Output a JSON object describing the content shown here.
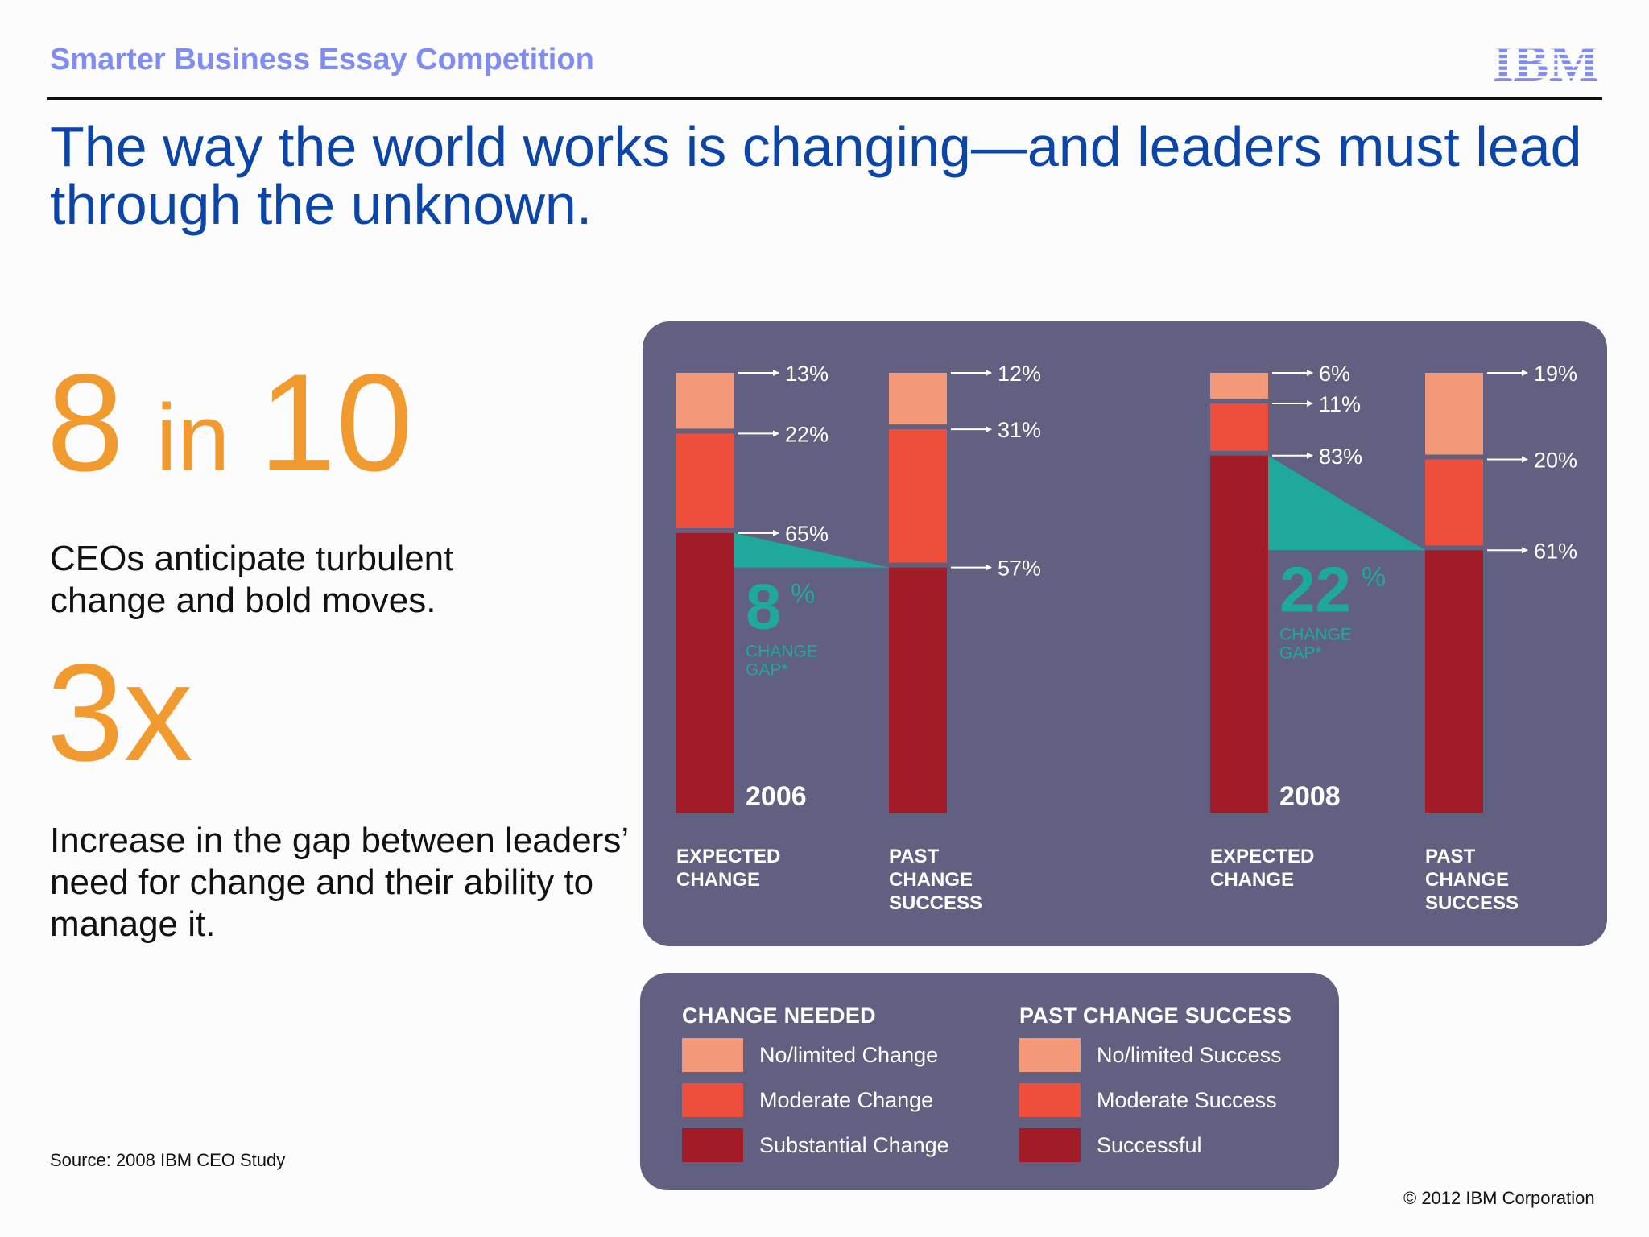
{
  "header": {
    "title": "Smarter Business Essay Competition",
    "logo_text": "IBM"
  },
  "headline": "The way the world works is changing—and leaders must lead through the unknown.",
  "stats": {
    "first": {
      "number_a": "8",
      "word": "in",
      "number_b": "10",
      "desc": "CEOs anticipate turbulent change and bold moves."
    },
    "second": {
      "value": "3x",
      "desc": "Increase in the gap between leaders’ need for change and their ability to manage it."
    }
  },
  "source": "Source: 2008 IBM CEO Study",
  "copyright": "© 2012 IBM Corporation",
  "colors": {
    "brand_blue": "#0b45a8",
    "header_blue": "#7f8df3",
    "orange": "#f19a30",
    "panel": "#616080",
    "teal": "#1fa99b",
    "light": "#f4987a",
    "medium": "#ee4f3d",
    "dark": "#a21c28"
  },
  "chart_data": {
    "type": "bar",
    "stacked": true,
    "groups": [
      {
        "year": "2006",
        "gap_value": "8",
        "gap_unit": "%",
        "gap_label_1": "CHANGE",
        "gap_label_2": "GAP*",
        "bars": [
          {
            "label_lines": [
              "EXPECTED",
              "CHANGE"
            ],
            "segments": [
              {
                "key": "light",
                "value": 13,
                "label": "13%"
              },
              {
                "key": "medium",
                "value": 22,
                "label": "22%"
              },
              {
                "key": "dark",
                "value": 65,
                "label": "65%"
              }
            ]
          },
          {
            "label_lines": [
              "PAST",
              "CHANGE",
              "SUCCESS"
            ],
            "segments": [
              {
                "key": "light",
                "value": 12,
                "label": "12%"
              },
              {
                "key": "medium",
                "value": 31,
                "label": "31%"
              },
              {
                "key": "dark",
                "value": 57,
                "label": "57%"
              }
            ]
          }
        ]
      },
      {
        "year": "2008",
        "gap_value": "22",
        "gap_unit": "%",
        "gap_label_1": "CHANGE",
        "gap_label_2": "GAP*",
        "bars": [
          {
            "label_lines": [
              "EXPECTED",
              "CHANGE"
            ],
            "segments": [
              {
                "key": "light",
                "value": 6,
                "label": "6%"
              },
              {
                "key": "medium",
                "value": 11,
                "label": "11%"
              },
              {
                "key": "dark",
                "value": 83,
                "label": "83%"
              }
            ]
          },
          {
            "label_lines": [
              "PAST",
              "CHANGE",
              "SUCCESS"
            ],
            "segments": [
              {
                "key": "light",
                "value": 19,
                "label": "19%"
              },
              {
                "key": "medium",
                "value": 20,
                "label": "20%"
              },
              {
                "key": "dark",
                "value": 61,
                "label": "61%"
              }
            ]
          }
        ]
      }
    ],
    "legend": {
      "change_needed": {
        "title": "CHANGE NEEDED",
        "items": [
          {
            "key": "light",
            "label": "No/limited Change"
          },
          {
            "key": "medium",
            "label": "Moderate Change"
          },
          {
            "key": "dark",
            "label": "Substantial Change"
          }
        ]
      },
      "past_change_success": {
        "title": "PAST CHANGE SUCCESS",
        "items": [
          {
            "key": "light",
            "label": "No/limited Success"
          },
          {
            "key": "medium",
            "label": "Moderate Success"
          },
          {
            "key": "dark",
            "label": "Successful"
          }
        ]
      }
    }
  }
}
